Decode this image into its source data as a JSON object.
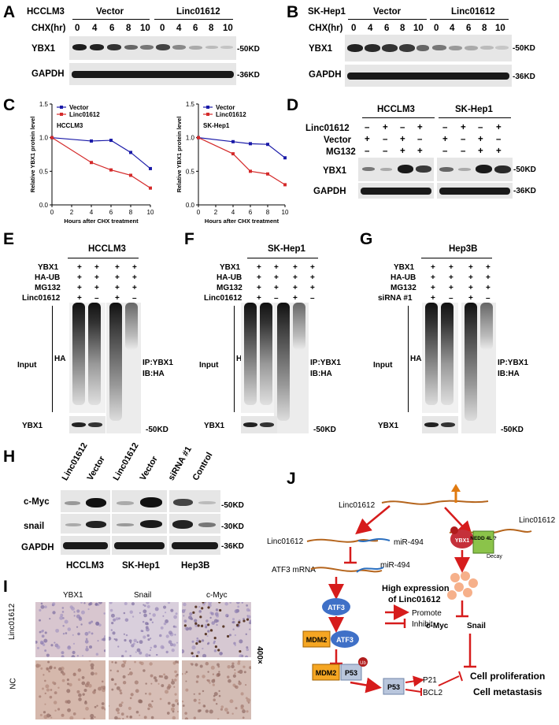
{
  "panels": {
    "A": "A",
    "B": "B",
    "C": "C",
    "D": "D",
    "E": "E",
    "F": "F",
    "G": "G",
    "H": "H",
    "I": "I",
    "J": "J"
  },
  "panel_a": {
    "cell": "HCCLM3",
    "vector": "Vector",
    "linc": "Linc01612",
    "chx": "CHX(hr)",
    "times": [
      "0",
      "4",
      "6",
      "8",
      "10"
    ],
    "yb": "YBX1",
    "gapdh": "GAPDH",
    "kd50": "-50KD",
    "kd36": "-36KD"
  },
  "panel_b": {
    "cell": "SK-Hep1",
    "vector": "Vector",
    "linc": "Linc01612",
    "chx": "CHX(hr)",
    "times": [
      "0",
      "4",
      "6",
      "8",
      "10"
    ],
    "yb": "YBX1",
    "gapdh": "GAPDH",
    "kd50": "-50KD",
    "kd36": "-36KD"
  },
  "panel_d": {
    "cells": [
      "HCCLM3",
      "SK-Hep1"
    ],
    "rows": [
      "Linc01612",
      "Vector",
      "MG132"
    ],
    "signs": [
      [
        "–",
        "+",
        "–",
        "+",
        "–",
        "+",
        "–",
        "+"
      ],
      [
        "+",
        "–",
        "+",
        "–",
        "+",
        "–",
        "+",
        "–"
      ],
      [
        "–",
        "–",
        "+",
        "+",
        "–",
        "–",
        "+",
        "+"
      ]
    ],
    "yb": "YBX1",
    "gapdh": "GAPDH",
    "kd50": "-50KD",
    "kd36": "-36KD"
  },
  "panel_e": {
    "cell": "HCCLM3",
    "rows": [
      "YBX1",
      "HA-UB",
      "MG132",
      "Linc01612"
    ],
    "signs": [
      [
        "+",
        "+",
        "+",
        "+"
      ],
      [
        "+",
        "+",
        "+",
        "+"
      ],
      [
        "+",
        "+",
        "+",
        "+"
      ],
      [
        "+",
        "–",
        "+",
        "–"
      ]
    ],
    "input": "Input",
    "ha": "HA",
    "ip": "IP:YBX1",
    "ib": "IB:HA",
    "yb": "YBX1",
    "kd": "-50KD"
  },
  "panel_f": {
    "cell": "SK-Hep1",
    "rows": [
      "YBX1",
      "HA-UB",
      "MG132",
      "Linc01612"
    ],
    "signs": [
      [
        "+",
        "+",
        "+",
        "+"
      ],
      [
        "+",
        "+",
        "+",
        "+"
      ],
      [
        "+",
        "+",
        "+",
        "+"
      ],
      [
        "+",
        "–",
        "+",
        "–"
      ]
    ],
    "input": "Input",
    "ha": "HA",
    "ip": "IP:YBX1",
    "ib": "IB:HA",
    "yb": "YBX1",
    "kd": "-50KD"
  },
  "panel_g": {
    "cell": "Hep3B",
    "rows": [
      "YBX1",
      "HA-UB",
      "MG132",
      "siRNA #1"
    ],
    "signs": [
      [
        "+",
        "+",
        "+",
        "+"
      ],
      [
        "+",
        "+",
        "+",
        "+"
      ],
      [
        "+",
        "+",
        "+",
        "+"
      ],
      [
        "+",
        "–",
        "+",
        "–"
      ]
    ],
    "input": "Input",
    "ha": "HA",
    "ip": "IP:YBX1",
    "ib": "IB:HA",
    "yb": "YBX1",
    "kd": "-50KD"
  },
  "panel_h": {
    "cols": [
      "Linc01612",
      "Vector",
      "Linc01612",
      "Vector",
      "siRNA #1",
      "Control"
    ],
    "rows": [
      "c-Myc",
      "snail",
      "GAPDH"
    ],
    "kds": [
      "-50KD",
      "-30KD",
      "-36KD"
    ],
    "cells": [
      "HCCLM3",
      "SK-Hep1",
      "Hep3B"
    ]
  },
  "panel_i": {
    "cols": [
      "YBX1",
      "Snail",
      "c-Myc"
    ],
    "rows": [
      "Linc01612",
      "NC"
    ],
    "mag": "400×"
  },
  "panel_j": {
    "linc_top": "Linc01612",
    "linc_mid": "Linc01612",
    "mir1": "miR-494",
    "atf3mrna": "ATF3 mRNA",
    "mir2": "miR-494",
    "linc_right": "Linc01612",
    "ybx1": "YBX1",
    "nedd": "NEDD\n4L ?",
    "decay": "Decay",
    "atf3": "ATF3",
    "mdm2": "MDM2",
    "atf3b": "ATF3",
    "mdm2b": "MDM2",
    "p53": "P53",
    "p53b": "P53",
    "p21": "P21",
    "bcl2": "BCL2",
    "high1": "High expression",
    "high2": "of Linc01612",
    "promote": "Promote",
    "inhibit": "Inhibit",
    "cmyc": "c-Myc",
    "snail": "Snail",
    "prolif": "Cell proliferation",
    "meta": "Cell metastasis",
    "ub": "Ub"
  },
  "chart_data": [
    {
      "type": "line",
      "title": "HCCLM3",
      "xlabel": "Hours after CHX treatment",
      "ylabel": "Relative YBX1 protein level",
      "x": [
        0,
        4,
        6,
        8,
        10
      ],
      "xlim": [
        0,
        10
      ],
      "ylim": [
        0,
        1.5
      ],
      "xticks": [
        0,
        2,
        4,
        6,
        8,
        10
      ],
      "yticks": [
        0.0,
        0.5,
        1.0,
        1.5
      ],
      "legend": "top-left",
      "series": [
        {
          "name": "Vector",
          "color": "#1a1aa8",
          "values": [
            1.0,
            0.95,
            0.96,
            0.78,
            0.54
          ]
        },
        {
          "name": "Linc01612",
          "color": "#d42a2a",
          "values": [
            1.0,
            0.63,
            0.52,
            0.44,
            0.25
          ]
        }
      ]
    },
    {
      "type": "line",
      "title": "SK-Hep1",
      "xlabel": "Hours after CHX treatment",
      "ylabel": "Relative YBX1 protein level",
      "x": [
        0,
        4,
        6,
        8,
        10
      ],
      "xlim": [
        0,
        10
      ],
      "ylim": [
        0,
        1.5
      ],
      "xticks": [
        0,
        2,
        4,
        6,
        8,
        10
      ],
      "yticks": [
        0.0,
        0.5,
        1.0,
        1.5
      ],
      "legend": "top-left",
      "series": [
        {
          "name": "Vector",
          "color": "#1a1aa8",
          "values": [
            1.0,
            0.94,
            0.91,
            0.9,
            0.7
          ]
        },
        {
          "name": "Linc01612",
          "color": "#d42a2a",
          "values": [
            1.0,
            0.76,
            0.5,
            0.46,
            0.3
          ]
        }
      ]
    }
  ]
}
